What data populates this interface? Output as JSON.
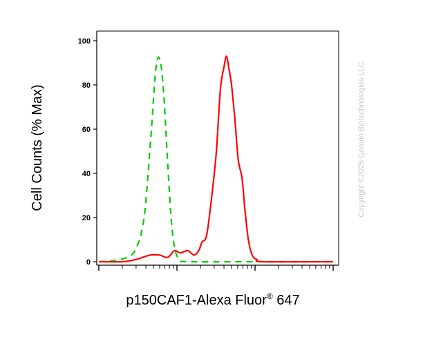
{
  "chart_data": {
    "type": "line",
    "xlabel": "p150CAF1-Alexa Fluor",
    "xlabel_superscript": "®",
    "xlabel_suffix": " 647",
    "ylabel": "Cell Counts (% Max)",
    "x_scale": "log",
    "xlim": [
      1,
      1000
    ],
    "ylim": [
      0,
      100
    ],
    "yticks": [
      0,
      20,
      40,
      60,
      80,
      100
    ],
    "legend": "none",
    "grid": false,
    "watermark": "Copyright ©2025 Genuin Biotechnologies LLC",
    "series": [
      {
        "color": "#00cc00",
        "style": "dashed",
        "points": [
          [
            1,
            0
          ],
          [
            1.5,
            0.5
          ],
          [
            2.3,
            2
          ],
          [
            3,
            6
          ],
          [
            3.8,
            20
          ],
          [
            4.6,
            55
          ],
          [
            5.4,
            88
          ],
          [
            6.1,
            91
          ],
          [
            6.8,
            75
          ],
          [
            7.6,
            45
          ],
          [
            8.5,
            18
          ],
          [
            9.5,
            5
          ],
          [
            11,
            1
          ],
          [
            14,
            0
          ],
          [
            100,
            0
          ],
          [
            1000,
            0
          ]
        ]
      },
      {
        "color": "#ff0000",
        "style": "solid",
        "points": [
          [
            1,
            0
          ],
          [
            2,
            0
          ],
          [
            3,
            1
          ],
          [
            4.5,
            3
          ],
          [
            6,
            3
          ],
          [
            7.6,
            2
          ],
          [
            9.3,
            5
          ],
          [
            11,
            4
          ],
          [
            13.8,
            5
          ],
          [
            16.5,
            3
          ],
          [
            19,
            5
          ],
          [
            21,
            9
          ],
          [
            24,
            12
          ],
          [
            28,
            30
          ],
          [
            32,
            50
          ],
          [
            36,
            78
          ],
          [
            40,
            88
          ],
          [
            43,
            93
          ],
          [
            46,
            88
          ],
          [
            50,
            80
          ],
          [
            55,
            65
          ],
          [
            61,
            46
          ],
          [
            68,
            38
          ],
          [
            74,
            24
          ],
          [
            82,
            10
          ],
          [
            92,
            3
          ],
          [
            105,
            1
          ],
          [
            130,
            0
          ],
          [
            1000,
            0
          ]
        ]
      }
    ]
  }
}
